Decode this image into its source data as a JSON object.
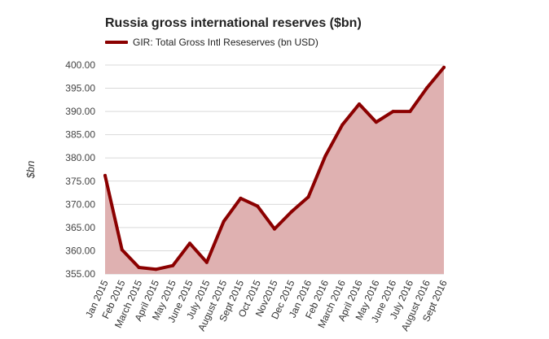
{
  "chart_data": {
    "type": "area",
    "title": "Russia gross international reserves ($bn)",
    "ylabel": "$bn",
    "xlabel": "",
    "ylim": [
      355,
      400
    ],
    "yticks": [
      "355.00",
      "360.00",
      "365.00",
      "370.00",
      "375.00",
      "380.00",
      "385.00",
      "390.00",
      "395.00",
      "400.00"
    ],
    "grid": true,
    "legend_position": "top-left",
    "categories": [
      "Jan 2015",
      "Feb 2015",
      "March 2015",
      "April 2015",
      "May 2015",
      "June 2015",
      "July 2015",
      "August 2015",
      "Sept 2015",
      "Oct 2015",
      "Nov2015",
      "Dec 2015",
      "Jan 2016",
      "Feb 2016",
      "March 2016",
      "April 2016",
      "May 2016",
      "June 2016",
      "July 2016",
      "August 2016",
      "Sept 2016"
    ],
    "series": [
      {
        "name": "GIR: Total Gross Intl Reseserves (bn USD)",
        "color": "#8b0000",
        "fill": "#dfb1b1",
        "values": [
          376.2,
          360.2,
          356.4,
          356.0,
          356.8,
          361.6,
          357.5,
          366.3,
          371.3,
          369.6,
          364.7,
          368.4,
          371.6,
          380.4,
          387.1,
          391.6,
          387.7,
          390.0,
          390.0,
          395.1,
          399.5
        ]
      }
    ]
  }
}
